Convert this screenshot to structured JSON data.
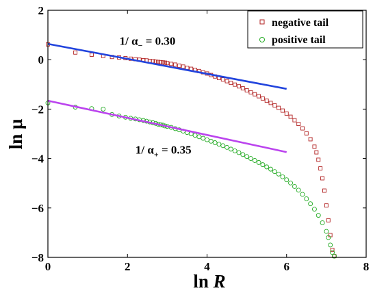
{
  "chart_data": {
    "type": "scatter",
    "title": "",
    "xlabel_main": "ln ",
    "xlabel_italic": "R",
    "ylabel": "ln μ",
    "xlim": [
      0,
      8
    ],
    "ylim": [
      -8,
      2
    ],
    "xticks": [
      0,
      2,
      4,
      6,
      8
    ],
    "yticks": [
      2,
      0,
      -2,
      -4,
      -6,
      -8
    ],
    "xtick_labels": [
      "0",
      "2",
      "4",
      "6",
      "8"
    ],
    "ytick_labels": [
      "2",
      "0",
      "−2",
      "−4",
      "−6",
      "−8"
    ],
    "grid": false,
    "legend_position": "top-right",
    "series": [
      {
        "name": "negative tail",
        "marker": "square",
        "color": "#b22222",
        "points": [
          [
            0.0,
            0.62
          ],
          [
            0.69,
            0.29
          ],
          [
            1.1,
            0.2
          ],
          [
            1.39,
            0.15
          ],
          [
            1.61,
            0.11
          ],
          [
            1.79,
            0.09
          ],
          [
            1.95,
            0.06
          ],
          [
            2.08,
            0.04
          ],
          [
            2.2,
            0.02
          ],
          [
            2.3,
            0.0
          ],
          [
            2.4,
            -0.02
          ],
          [
            2.48,
            -0.03
          ],
          [
            2.56,
            -0.05
          ],
          [
            2.64,
            -0.06
          ],
          [
            2.71,
            -0.08
          ],
          [
            2.77,
            -0.09
          ],
          [
            2.83,
            -0.1
          ],
          [
            2.89,
            -0.11
          ],
          [
            2.94,
            -0.12
          ],
          [
            3.0,
            -0.14
          ],
          [
            3.1,
            -0.17
          ],
          [
            3.2,
            -0.2
          ],
          [
            3.3,
            -0.24
          ],
          [
            3.4,
            -0.28
          ],
          [
            3.5,
            -0.33
          ],
          [
            3.6,
            -0.37
          ],
          [
            3.7,
            -0.41
          ],
          [
            3.8,
            -0.46
          ],
          [
            3.9,
            -0.51
          ],
          [
            4.0,
            -0.56
          ],
          [
            4.1,
            -0.62
          ],
          [
            4.2,
            -0.68
          ],
          [
            4.3,
            -0.74
          ],
          [
            4.4,
            -0.8
          ],
          [
            4.5,
            -0.87
          ],
          [
            4.6,
            -0.94
          ],
          [
            4.7,
            -1.01
          ],
          [
            4.8,
            -1.08
          ],
          [
            4.9,
            -1.16
          ],
          [
            5.0,
            -1.24
          ],
          [
            5.1,
            -1.32
          ],
          [
            5.2,
            -1.4
          ],
          [
            5.3,
            -1.48
          ],
          [
            5.4,
            -1.57
          ],
          [
            5.5,
            -1.66
          ],
          [
            5.6,
            -1.75
          ],
          [
            5.7,
            -1.85
          ],
          [
            5.8,
            -1.95
          ],
          [
            5.9,
            -2.06
          ],
          [
            6.0,
            -2.18
          ],
          [
            6.1,
            -2.31
          ],
          [
            6.2,
            -2.45
          ],
          [
            6.3,
            -2.6
          ],
          [
            6.4,
            -2.78
          ],
          [
            6.5,
            -2.98
          ],
          [
            6.6,
            -3.22
          ],
          [
            6.7,
            -3.52
          ],
          [
            6.75,
            -3.75
          ],
          [
            6.8,
            -4.05
          ],
          [
            6.85,
            -4.4
          ],
          [
            6.9,
            -4.8
          ],
          [
            6.95,
            -5.3
          ],
          [
            7.0,
            -5.9
          ],
          [
            7.05,
            -6.5
          ],
          [
            7.1,
            -7.1
          ],
          [
            7.15,
            -7.7
          ],
          [
            7.2,
            -7.95
          ]
        ]
      },
      {
        "name": "positive tail",
        "marker": "circle",
        "color": "#22aa22",
        "points": [
          [
            0.0,
            -1.75
          ],
          [
            0.69,
            -1.92
          ],
          [
            1.1,
            -1.98
          ],
          [
            1.39,
            -2.0
          ],
          [
            1.61,
            -2.22
          ],
          [
            1.79,
            -2.28
          ],
          [
            1.95,
            -2.33
          ],
          [
            2.08,
            -2.37
          ],
          [
            2.2,
            -2.4
          ],
          [
            2.3,
            -2.43
          ],
          [
            2.4,
            -2.46
          ],
          [
            2.48,
            -2.49
          ],
          [
            2.56,
            -2.52
          ],
          [
            2.64,
            -2.55
          ],
          [
            2.71,
            -2.58
          ],
          [
            2.77,
            -2.61
          ],
          [
            2.83,
            -2.63
          ],
          [
            2.89,
            -2.65
          ],
          [
            2.94,
            -2.68
          ],
          [
            3.0,
            -2.7
          ],
          [
            3.1,
            -2.74
          ],
          [
            3.2,
            -2.79
          ],
          [
            3.3,
            -2.84
          ],
          [
            3.4,
            -2.89
          ],
          [
            3.5,
            -2.95
          ],
          [
            3.6,
            -3.0
          ],
          [
            3.7,
            -3.06
          ],
          [
            3.8,
            -3.12
          ],
          [
            3.9,
            -3.18
          ],
          [
            4.0,
            -3.24
          ],
          [
            4.1,
            -3.3
          ],
          [
            4.2,
            -3.36
          ],
          [
            4.3,
            -3.42
          ],
          [
            4.4,
            -3.48
          ],
          [
            4.5,
            -3.55
          ],
          [
            4.6,
            -3.62
          ],
          [
            4.7,
            -3.69
          ],
          [
            4.8,
            -3.76
          ],
          [
            4.9,
            -3.84
          ],
          [
            5.0,
            -3.92
          ],
          [
            5.1,
            -4.0
          ],
          [
            5.2,
            -4.08
          ],
          [
            5.3,
            -4.16
          ],
          [
            5.4,
            -4.25
          ],
          [
            5.5,
            -4.34
          ],
          [
            5.6,
            -4.43
          ],
          [
            5.7,
            -4.53
          ],
          [
            5.8,
            -4.63
          ],
          [
            5.9,
            -4.74
          ],
          [
            6.0,
            -4.86
          ],
          [
            6.1,
            -4.99
          ],
          [
            6.2,
            -5.13
          ],
          [
            6.3,
            -5.28
          ],
          [
            6.4,
            -5.45
          ],
          [
            6.5,
            -5.63
          ],
          [
            6.6,
            -5.83
          ],
          [
            6.7,
            -6.05
          ],
          [
            6.8,
            -6.3
          ],
          [
            6.9,
            -6.6
          ],
          [
            7.0,
            -6.95
          ],
          [
            7.05,
            -7.2
          ],
          [
            7.1,
            -7.5
          ],
          [
            7.15,
            -7.8
          ],
          [
            7.2,
            -7.95
          ]
        ]
      }
    ],
    "fit_lines": [
      {
        "name": "fit-negative",
        "color": "#2244dd",
        "x": [
          0,
          6
        ],
        "y": [
          0.64,
          -1.18
        ]
      },
      {
        "name": "fit-positive",
        "color": "#bb44ee",
        "x": [
          0,
          6
        ],
        "y": [
          -1.66,
          -3.74
        ]
      }
    ],
    "annotations": [
      {
        "prefix": "1/ α",
        "sub": "−",
        "suffix": " = 0.30",
        "x": 1.8,
        "y": 0.6
      },
      {
        "prefix": "1/ α",
        "sub": "+",
        "suffix": " = 0.35",
        "x": 2.2,
        "y": -3.8
      }
    ]
  }
}
